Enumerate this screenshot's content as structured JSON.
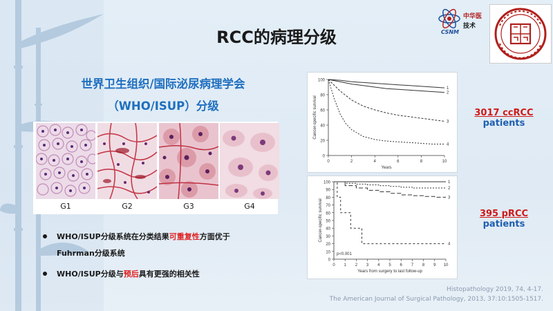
{
  "slide": {
    "title": "RCC的病理分级",
    "logo_csnm": {
      "org_text": "中华医",
      "org_text2": "技术",
      "acronym": "CSNM"
    },
    "heading_line1": "世界卫生组织/国际泌尿病理学会",
    "heading_line2": "（WHO/ISUP）分级",
    "grades": [
      "G1",
      "G2",
      "G3",
      "G4"
    ],
    "bullets": [
      {
        "pre": "WHO/ISUP分级系统在分类结果",
        "highlight": "可重复性",
        "post": "方面优于",
        "line2": "Fuhrman分级系统"
      },
      {
        "pre": "WHO/ISUP分级与",
        "highlight": "预后",
        "post": "具有更强的相关性",
        "line2": ""
      }
    ],
    "chart1_label": {
      "line1": "3017 ccRCC",
      "line2": "patients"
    },
    "chart2_label": {
      "line1": "395 pRCC",
      "line2": "patients"
    },
    "references": [
      "Histopathology 2019, 74, 4-17.",
      "The American Journal of Surgical Pathology, 2013, 37:10:1505-1517."
    ]
  },
  "chart_data": [
    {
      "type": "line",
      "title": "",
      "xlabel": "Years",
      "ylabel": "Cancer-specific survival",
      "xlim": [
        0,
        10
      ],
      "ylim": [
        0,
        100
      ],
      "xticks": [
        "0",
        "2",
        "4",
        "6",
        "8",
        "10"
      ],
      "yticks": [
        "0",
        "20",
        "40",
        "60",
        "80",
        "100"
      ],
      "series": [
        {
          "name": "1",
          "x": [
            0,
            1,
            2,
            3,
            4,
            5,
            6,
            7,
            8,
            9,
            10
          ],
          "values": [
            100,
            99,
            97,
            96,
            95,
            94,
            93,
            92,
            91,
            90,
            89
          ]
        },
        {
          "name": "2",
          "x": [
            0,
            1,
            2,
            3,
            4,
            5,
            6,
            7,
            8,
            9,
            10
          ],
          "values": [
            100,
            97,
            94,
            92,
            90,
            88,
            87,
            86,
            85,
            84,
            83
          ]
        },
        {
          "name": "3",
          "x": [
            0,
            1,
            2,
            3,
            4,
            5,
            6,
            7,
            8,
            9,
            10
          ],
          "values": [
            100,
            85,
            73,
            65,
            60,
            56,
            53,
            51,
            49,
            47,
            45
          ]
        },
        {
          "name": "4",
          "x": [
            0,
            0.5,
            1,
            1.5,
            2,
            3,
            4,
            5,
            6,
            7,
            8,
            9,
            10
          ],
          "values": [
            100,
            75,
            55,
            42,
            34,
            25,
            21,
            19,
            18,
            17,
            16,
            15,
            15
          ]
        }
      ]
    },
    {
      "type": "line",
      "title": "",
      "xlabel": "Years from surgery to last follow-up",
      "ylabel": "Cancer-specific survival",
      "annotation": "p<0.001",
      "xlim": [
        0,
        10
      ],
      "ylim": [
        0,
        100
      ],
      "xticks": [
        "0",
        "1",
        "2",
        "3",
        "4",
        "5",
        "6",
        "7",
        "8",
        "9",
        "10"
      ],
      "yticks": [
        "0",
        "10",
        "20",
        "30",
        "40",
        "50",
        "60",
        "70",
        "80",
        "90",
        "100"
      ],
      "series": [
        {
          "name": "1",
          "x": [
            0,
            2,
            4,
            6,
            8,
            10
          ],
          "values": [
            100,
            100,
            100,
            100,
            100,
            100
          ]
        },
        {
          "name": "2",
          "x": [
            0,
            1,
            2,
            3,
            4,
            5,
            6,
            7,
            8,
            9,
            10
          ],
          "values": [
            100,
            98,
            97,
            96,
            95,
            94,
            93,
            92,
            92,
            92,
            92
          ]
        },
        {
          "name": "3",
          "x": [
            0,
            1,
            2,
            3,
            4,
            5,
            6,
            7,
            8,
            9,
            10
          ],
          "values": [
            100,
            95,
            92,
            89,
            87,
            85,
            83,
            82,
            81,
            80,
            80
          ]
        },
        {
          "name": "4",
          "x": [
            0,
            0.3,
            0.6,
            1,
            1.5,
            2,
            2.5,
            3,
            4,
            6,
            8,
            10
          ],
          "values": [
            100,
            80,
            60,
            60,
            40,
            40,
            20,
            20,
            20,
            20,
            20,
            20
          ]
        }
      ]
    }
  ]
}
